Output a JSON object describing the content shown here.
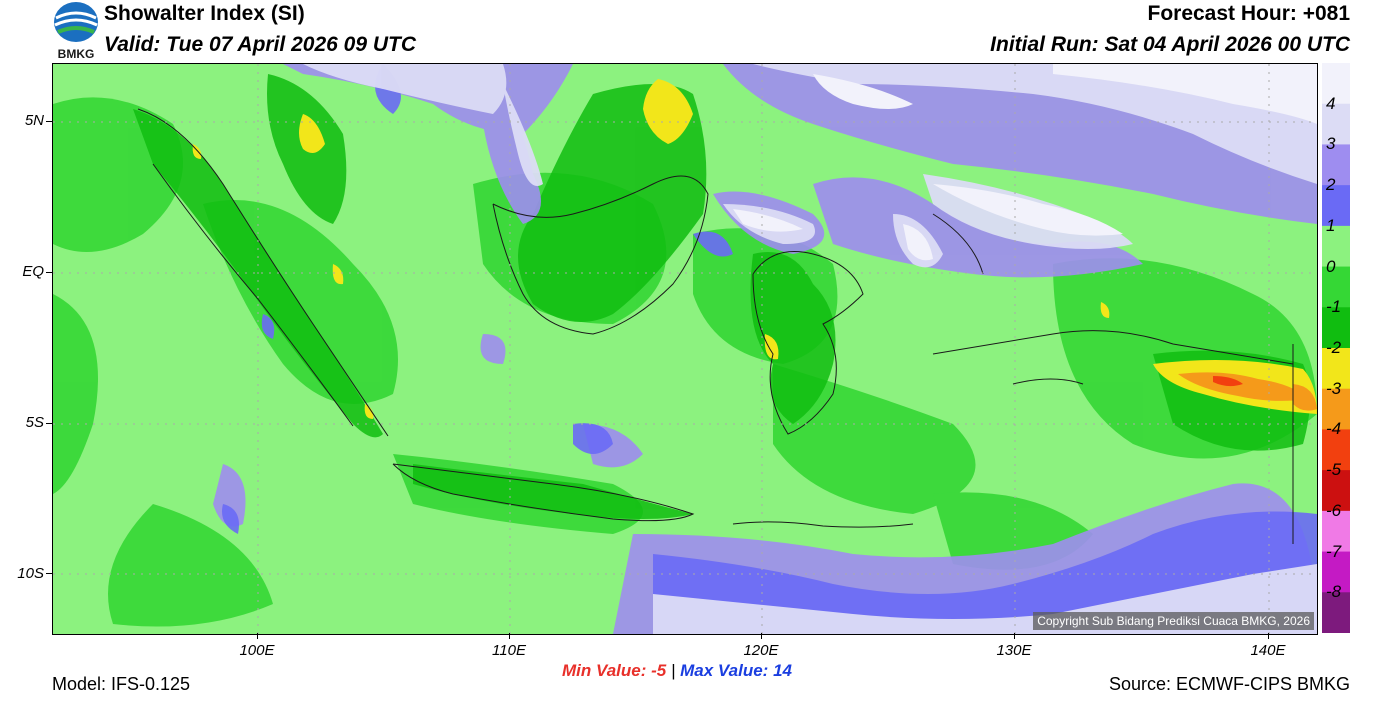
{
  "header": {
    "title": "Showalter Index (SI)",
    "valid": "Valid: Tue 07 April 2026 09 UTC",
    "forecast_hour": "Forecast Hour: +081",
    "initial_run": "Initial Run: Sat 04 April 2026 00 UTC",
    "logo_text": "BMKG"
  },
  "axes": {
    "y_labels": [
      "5N",
      "EQ",
      "5S",
      "10S"
    ],
    "x_labels": [
      "100E",
      "110E",
      "120E",
      "130E",
      "140E"
    ]
  },
  "colorbar": {
    "labels": [
      "4",
      "3",
      "2",
      "1",
      "0",
      "-1",
      "-2",
      "-3",
      "-4",
      "-5",
      "-6",
      "-7",
      "-8"
    ],
    "colors": [
      "#f2f2fb",
      "#dcdcf5",
      "#9e8df0",
      "#6a6af5",
      "#8cf27f",
      "#35d735",
      "#10bd10",
      "#f2e61a",
      "#f59a1a",
      "#f2400f",
      "#cc1010",
      "#f07ae6",
      "#c41ac4",
      "#7d1a7d"
    ]
  },
  "copyright": "Copyright Sub Bidang Prediksi Cuaca BMKG, 2026",
  "stats": {
    "min_label": "Min Value:",
    "min_value": "-5",
    "separator": "|",
    "max_label": "Max Value:",
    "max_value": "14"
  },
  "footer": {
    "model": "Model: IFS-0.125",
    "source": "Source: ECMWF-CIPS BMKG"
  }
}
